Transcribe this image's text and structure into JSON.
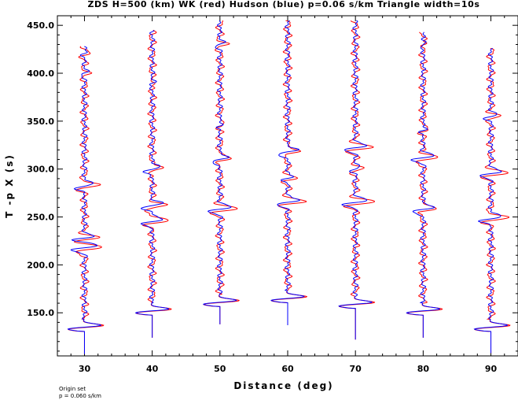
{
  "chart_data": {
    "type": "line",
    "title": "ZDS H=500 (km) WK (red) Hudson (blue) p=0.06 s/km Triangle width=10s",
    "xlabel": "Distance (deg)",
    "ylabel": "T -p X (s)",
    "xlim": [
      26,
      94
    ],
    "ylim": [
      105,
      460
    ],
    "x_ticks": [
      30,
      40,
      50,
      60,
      70,
      80,
      90
    ],
    "x_tick_labels": [
      "30",
      "40",
      "50",
      "60",
      "70",
      "80",
      "90"
    ],
    "y_ticks": [
      150,
      200,
      250,
      300,
      350,
      400,
      450
    ],
    "y_tick_labels": [
      "150.0",
      "200.0",
      "250.0",
      "300.0",
      "350.0",
      "400.0",
      "450.0"
    ],
    "grid": false,
    "legend": "none",
    "series": [
      {
        "color": "#ff0000",
        "traces": []
      },
      {
        "color": "#0000ff",
        "traces": []
      }
    ],
    "traces": [
      {
        "distance": 30,
        "start": 107,
        "end": 428,
        "first_arrival": 135,
        "events": [
          [
            135,
            3.5,
            4
          ],
          [
            218,
            2.5,
            5
          ],
          [
            228,
            2,
            4
          ],
          [
            282,
            2,
            5
          ],
          [
            400,
            0.5,
            4
          ],
          [
            420,
            0.5,
            4
          ]
        ]
      },
      {
        "distance": 40,
        "start": 124,
        "end": 445,
        "first_arrival": 152,
        "events": [
          [
            152,
            3.5,
            4
          ],
          [
            245,
            2.5,
            5
          ],
          [
            262,
            2,
            5
          ],
          [
            300,
            2,
            5
          ],
          [
            390,
            0.6,
            4
          ]
        ]
      },
      {
        "distance": 50,
        "start": 138,
        "end": 455,
        "first_arrival": 161,
        "events": [
          [
            161,
            3.5,
            4
          ],
          [
            258,
            2.2,
            5
          ],
          [
            310,
            2,
            5
          ],
          [
            345,
            0.8,
            4
          ],
          [
            430,
            0.8,
            4
          ]
        ]
      },
      {
        "distance": 60,
        "start": 137,
        "end": 455,
        "first_arrival": 165,
        "events": [
          [
            165,
            3.5,
            4
          ],
          [
            265,
            2.5,
            5
          ],
          [
            318,
            2.2,
            5
          ],
          [
            290,
            1.0,
            4
          ]
        ]
      },
      {
        "distance": 70,
        "start": 122,
        "end": 455,
        "first_arrival": 159,
        "events": [
          [
            159,
            3.5,
            4
          ],
          [
            265,
            2.5,
            5
          ],
          [
            322,
            2.2,
            5
          ],
          [
            300,
            0.8,
            4
          ]
        ]
      },
      {
        "distance": 80,
        "start": 124,
        "end": 443,
        "first_arrival": 152,
        "events": [
          [
            152,
            3.5,
            4
          ],
          [
            258,
            2.5,
            5
          ],
          [
            312,
            2.2,
            5
          ],
          [
            340,
            1.0,
            4
          ],
          [
            430,
            0.8,
            4
          ]
        ]
      },
      {
        "distance": 90,
        "start": 108,
        "end": 426,
        "first_arrival": 135,
        "events": [
          [
            135,
            3.5,
            4
          ],
          [
            248,
            2.5,
            5
          ],
          [
            295,
            2.2,
            5
          ],
          [
            355,
            1.2,
            4
          ]
        ]
      }
    ],
    "footnote": [
      "Origin set",
      "p = 0.060 s/km"
    ]
  }
}
